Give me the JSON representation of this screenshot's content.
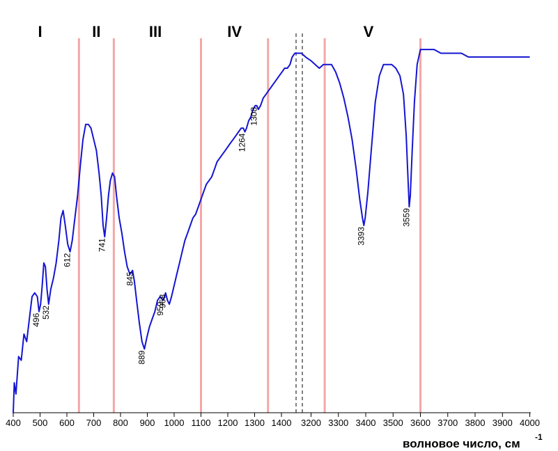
{
  "chart_data": {
    "type": "line",
    "title": "",
    "xlabel": "волновое число, см",
    "xlabel_superscript": "-1",
    "ylabel": "",
    "x_axis_break": [
      1450,
      3150
    ],
    "x_ticks_left": [
      "400",
      "500",
      "600",
      "700",
      "800",
      "900",
      "1000",
      "1100",
      "1200",
      "1300",
      "1400"
    ],
    "x_ticks_right": [
      "3200",
      "3300",
      "3400",
      "3500",
      "3600",
      "3700",
      "3800",
      "3900",
      "4000"
    ],
    "regions": [
      {
        "label": "I",
        "x": 500
      },
      {
        "label": "II",
        "x": 710
      },
      {
        "label": "III",
        "x": 930
      },
      {
        "label": "IV",
        "x": 1225
      },
      {
        "label": "V",
        "x": 3410
      }
    ],
    "boundaries": [
      645,
      775,
      1100,
      1350,
      3250,
      3600
    ],
    "boundary_color": "#f4a7a7",
    "series": [
      {
        "color": "#1414d2",
        "points": [
          [
            400,
            0.0
          ],
          [
            404,
            0.08
          ],
          [
            410,
            0.05
          ],
          [
            420,
            0.15
          ],
          [
            430,
            0.14
          ],
          [
            440,
            0.21
          ],
          [
            450,
            0.19
          ],
          [
            460,
            0.25
          ],
          [
            470,
            0.31
          ],
          [
            480,
            0.32
          ],
          [
            490,
            0.31
          ],
          [
            496,
            0.27
          ],
          [
            502,
            0.29
          ],
          [
            508,
            0.34
          ],
          [
            514,
            0.4
          ],
          [
            520,
            0.39
          ],
          [
            526,
            0.33
          ],
          [
            532,
            0.29
          ],
          [
            540,
            0.33
          ],
          [
            550,
            0.36
          ],
          [
            560,
            0.4
          ],
          [
            570,
            0.46
          ],
          [
            578,
            0.52
          ],
          [
            586,
            0.54
          ],
          [
            594,
            0.5
          ],
          [
            603,
            0.45
          ],
          [
            612,
            0.43
          ],
          [
            620,
            0.46
          ],
          [
            630,
            0.52
          ],
          [
            640,
            0.58
          ],
          [
            650,
            0.66
          ],
          [
            660,
            0.73
          ],
          [
            670,
            0.77
          ],
          [
            680,
            0.77
          ],
          [
            690,
            0.76
          ],
          [
            700,
            0.73
          ],
          [
            710,
            0.7
          ],
          [
            720,
            0.64
          ],
          [
            728,
            0.58
          ],
          [
            735,
            0.5
          ],
          [
            741,
            0.47
          ],
          [
            748,
            0.52
          ],
          [
            755,
            0.58
          ],
          [
            762,
            0.62
          ],
          [
            770,
            0.64
          ],
          [
            778,
            0.63
          ],
          [
            785,
            0.58
          ],
          [
            795,
            0.52
          ],
          [
            805,
            0.48
          ],
          [
            815,
            0.43
          ],
          [
            825,
            0.39
          ],
          [
            835,
            0.37
          ],
          [
            845,
            0.38
          ],
          [
            852,
            0.35
          ],
          [
            860,
            0.3
          ],
          [
            870,
            0.24
          ],
          [
            880,
            0.19
          ],
          [
            889,
            0.17
          ],
          [
            898,
            0.2
          ],
          [
            908,
            0.23
          ],
          [
            918,
            0.25
          ],
          [
            928,
            0.27
          ],
          [
            938,
            0.3
          ],
          [
            948,
            0.31
          ],
          [
            959,
            0.3
          ],
          [
            968,
            0.32
          ],
          [
            975,
            0.3
          ],
          [
            982,
            0.29
          ],
          [
            990,
            0.31
          ],
          [
            1000,
            0.34
          ],
          [
            1010,
            0.37
          ],
          [
            1020,
            0.4
          ],
          [
            1030,
            0.43
          ],
          [
            1040,
            0.46
          ],
          [
            1050,
            0.48
          ],
          [
            1060,
            0.5
          ],
          [
            1070,
            0.52
          ],
          [
            1080,
            0.53
          ],
          [
            1090,
            0.55
          ],
          [
            1100,
            0.57
          ],
          [
            1110,
            0.59
          ],
          [
            1120,
            0.61
          ],
          [
            1130,
            0.62
          ],
          [
            1140,
            0.63
          ],
          [
            1150,
            0.65
          ],
          [
            1160,
            0.67
          ],
          [
            1170,
            0.68
          ],
          [
            1180,
            0.69
          ],
          [
            1190,
            0.7
          ],
          [
            1200,
            0.71
          ],
          [
            1210,
            0.72
          ],
          [
            1220,
            0.73
          ],
          [
            1230,
            0.74
          ],
          [
            1240,
            0.75
          ],
          [
            1250,
            0.76
          ],
          [
            1258,
            0.76
          ],
          [
            1264,
            0.75
          ],
          [
            1270,
            0.76
          ],
          [
            1278,
            0.78
          ],
          [
            1286,
            0.79
          ],
          [
            1294,
            0.81
          ],
          [
            1302,
            0.82
          ],
          [
            1308,
            0.82
          ],
          [
            1314,
            0.81
          ],
          [
            1322,
            0.82
          ],
          [
            1332,
            0.84
          ],
          [
            1342,
            0.85
          ],
          [
            1352,
            0.86
          ],
          [
            1362,
            0.87
          ],
          [
            1372,
            0.88
          ],
          [
            1382,
            0.89
          ],
          [
            1392,
            0.9
          ],
          [
            1402,
            0.91
          ],
          [
            1412,
            0.92
          ],
          [
            1422,
            0.92
          ],
          [
            1432,
            0.93
          ],
          [
            1440,
            0.95
          ],
          [
            1450,
            0.96
          ],
          [
            3150,
            0.96
          ],
          [
            3165,
            0.96
          ],
          [
            3180,
            0.95
          ],
          [
            3200,
            0.94
          ],
          [
            3215,
            0.93
          ],
          [
            3230,
            0.92
          ],
          [
            3245,
            0.93
          ],
          [
            3260,
            0.93
          ],
          [
            3275,
            0.93
          ],
          [
            3290,
            0.91
          ],
          [
            3305,
            0.88
          ],
          [
            3320,
            0.84
          ],
          [
            3335,
            0.79
          ],
          [
            3350,
            0.73
          ],
          [
            3365,
            0.65
          ],
          [
            3378,
            0.57
          ],
          [
            3388,
            0.52
          ],
          [
            3393,
            0.5
          ],
          [
            3398,
            0.52
          ],
          [
            3408,
            0.59
          ],
          [
            3420,
            0.7
          ],
          [
            3435,
            0.83
          ],
          [
            3450,
            0.9
          ],
          [
            3465,
            0.93
          ],
          [
            3480,
            0.93
          ],
          [
            3495,
            0.93
          ],
          [
            3510,
            0.92
          ],
          [
            3525,
            0.9
          ],
          [
            3538,
            0.85
          ],
          [
            3548,
            0.74
          ],
          [
            3555,
            0.62
          ],
          [
            3559,
            0.55
          ],
          [
            3563,
            0.58
          ],
          [
            3570,
            0.7
          ],
          [
            3578,
            0.83
          ],
          [
            3588,
            0.93
          ],
          [
            3600,
            0.97
          ],
          [
            3625,
            0.97
          ],
          [
            3650,
            0.97
          ],
          [
            3675,
            0.96
          ],
          [
            3700,
            0.96
          ],
          [
            3725,
            0.96
          ],
          [
            3750,
            0.96
          ],
          [
            3775,
            0.95
          ],
          [
            3800,
            0.95
          ],
          [
            3825,
            0.95
          ],
          [
            3850,
            0.95
          ],
          [
            3875,
            0.95
          ],
          [
            3900,
            0.95
          ],
          [
            3925,
            0.95
          ],
          [
            3950,
            0.95
          ],
          [
            3975,
            0.95
          ],
          [
            4000,
            0.95
          ]
        ]
      }
    ],
    "peak_labels": [
      {
        "text": "496",
        "x": 496,
        "y": 0.27
      },
      {
        "text": "532",
        "x": 532,
        "y": 0.29
      },
      {
        "text": "612",
        "x": 612,
        "y": 0.43
      },
      {
        "text": "741",
        "x": 741,
        "y": 0.47
      },
      {
        "text": "845",
        "x": 845,
        "y": 0.38
      },
      {
        "text": "889",
        "x": 889,
        "y": 0.17
      },
      {
        "text": "959",
        "x": 959,
        "y": 0.3
      },
      {
        "text": "968",
        "x": 968,
        "y": 0.32
      },
      {
        "text": "1264",
        "x": 1264,
        "y": 0.75
      },
      {
        "text": "1308",
        "x": 1308,
        "y": 0.82
      },
      {
        "text": "3393",
        "x": 3393,
        "y": 0.5
      },
      {
        "text": "3559",
        "x": 3559,
        "y": 0.55
      }
    ]
  }
}
